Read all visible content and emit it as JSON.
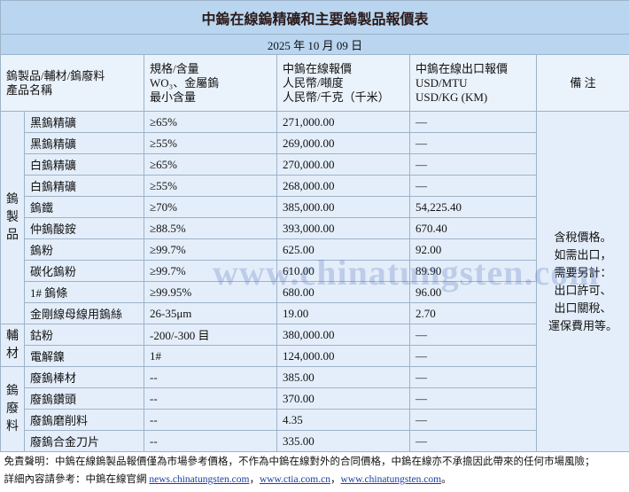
{
  "header": {
    "title": "中鎢在線鎢精礦和主要鎢製品報價表",
    "date": "2025 年 10 月 09 日"
  },
  "columns": [
    [
      "鎢製品/輔材/鎢廢料",
      "產品名稱"
    ],
    [
      "規格/含量",
      "WO₃、金屬鎢",
      "最小含量"
    ],
    [
      "中鎢在線報價",
      "人民幣/噸度",
      "人民幣/千克（千米）"
    ],
    [
      "中鎢在線出口報價",
      "USD/MTU",
      "USD/KG (KM)"
    ],
    [
      "備 注"
    ]
  ],
  "groups": [
    {
      "label": "鎢製品",
      "rows": [
        [
          "黑鎢精礦",
          "≥65%",
          "271,000.00",
          "—"
        ],
        [
          "黑鎢精礦",
          "≥55%",
          "269,000.00",
          "—"
        ],
        [
          "白鎢精礦",
          "≥65%",
          "270,000.00",
          "—"
        ],
        [
          "白鎢精礦",
          "≥55%",
          "268,000.00",
          "—"
        ],
        [
          "鎢鐵",
          "≥70%",
          "385,000.00",
          "54,225.40"
        ],
        [
          "仲鎢酸銨",
          "≥88.5%",
          "393,000.00",
          "670.40"
        ],
        [
          "鎢粉",
          "≥99.7%",
          "625.00",
          "92.00"
        ],
        [
          "碳化鎢粉",
          "≥99.7%",
          "610.00",
          "89.90"
        ],
        [
          "1# 鎢條",
          "≥99.95%",
          "680.00",
          "96.00"
        ],
        [
          "金剛線母線用鎢絲",
          "26-35μm",
          "19.00",
          "2.70"
        ]
      ]
    },
    {
      "label": "輔材",
      "rows": [
        [
          "鈷粉",
          "-200/-300 目",
          "380,000.00",
          "—"
        ],
        [
          "電解鎳",
          "1#",
          "124,000.00",
          "—"
        ]
      ]
    },
    {
      "label": "鎢廢料",
      "rows": [
        [
          "廢鎢棒材",
          "--",
          "385.00",
          "—"
        ],
        [
          "廢鎢鑽頭",
          "--",
          "370.00",
          "—"
        ],
        [
          "廢鎢磨削料",
          "--",
          "4.35",
          "—"
        ],
        [
          "廢鎢合金刀片",
          "--",
          "335.00",
          "—"
        ]
      ]
    }
  ],
  "remark": [
    "含稅價格。",
    "如需出口，",
    "需要另計：",
    "出口許可、",
    "出口關稅、",
    "運保費用等。"
  ],
  "watermark": "www.chinatungsten.com",
  "footer": {
    "disclaimer": "免責聲明：中鎢在線鎢製品報價僅為市場參考價格，不作為中鎢在線對外的合同價格，中鎢在線亦不承擔因此帶來的任何市場風險；",
    "prefix": "詳細內容請參考：中鎢在線官網",
    "links": [
      "news.chinatungsten.com",
      "www.ctia.com.cn",
      "www.chinatungsten.com"
    ],
    "separator": "，",
    "end": "。"
  }
}
